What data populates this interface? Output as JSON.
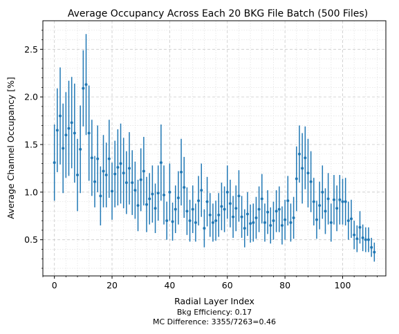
{
  "chart_data": {
    "type": "scatter",
    "title": "Average Occupancy Across Each 20 BKG File Batch (500 Files)",
    "xlabel": "Radial Layer Index",
    "ylabel": "Average Channel Occupancy [%]",
    "xlim": [
      -4,
      115
    ],
    "ylim": [
      0.12,
      2.8
    ],
    "xticks": [
      0,
      20,
      40,
      60,
      80,
      100
    ],
    "yticks": [
      0.5,
      1.0,
      1.5,
      2.0,
      2.5
    ],
    "xtick_labels": [
      "0",
      "20",
      "40",
      "60",
      "80",
      "100"
    ],
    "ytick_labels": [
      "0.5",
      "1.0",
      "1.5",
      "2.0",
      "2.5"
    ],
    "grid": true,
    "marker_color": "#1f77b4",
    "annotations": [
      "Bkg Efficiency: 0.17",
      "MC Difference: 3355/7263=0.46"
    ],
    "series": [
      {
        "x": [
          0,
          1,
          2,
          3,
          4,
          5,
          6,
          7,
          8,
          9,
          10,
          11,
          12,
          13,
          14,
          15,
          16,
          17,
          18,
          19,
          20,
          21,
          22,
          23,
          24,
          25,
          26,
          27,
          28,
          29,
          30,
          31,
          32,
          33,
          34,
          35,
          36,
          37,
          38,
          39,
          40,
          41,
          42,
          43,
          44,
          45,
          46,
          47,
          48,
          49,
          50,
          51,
          52,
          53,
          54,
          55,
          56,
          57,
          58,
          59,
          60,
          61,
          62,
          63,
          64,
          65,
          66,
          67,
          68,
          69,
          70,
          71,
          72,
          73,
          74,
          75,
          76,
          77,
          78,
          79,
          80,
          81,
          82,
          83,
          84,
          85,
          86,
          87,
          88,
          89,
          90,
          91,
          92,
          93,
          94,
          95,
          96,
          97,
          98,
          99,
          100,
          101,
          102,
          103,
          104,
          105,
          106,
          107,
          108,
          109,
          110,
          111
        ],
        "y": [
          1.31,
          1.65,
          1.8,
          1.46,
          1.6,
          1.67,
          1.73,
          1.62,
          1.18,
          1.45,
          2.09,
          2.13,
          1.62,
          1.36,
          1.11,
          1.35,
          0.96,
          1.22,
          1.18,
          1.35,
          1.01,
          1.19,
          1.26,
          1.3,
          1.2,
          1.1,
          1.25,
          1.1,
          1.02,
          0.86,
          1.13,
          1.22,
          0.87,
          0.93,
          0.98,
          0.83,
          0.99,
          1.31,
          0.97,
          0.7,
          1.0,
          0.69,
          0.82,
          0.94,
          1.21,
          1.05,
          0.8,
          0.7,
          0.82,
          0.68,
          0.91,
          1.02,
          0.62,
          0.9,
          0.76,
          0.68,
          0.7,
          0.76,
          0.85,
          0.82,
          1.0,
          0.88,
          0.74,
          0.83,
          0.96,
          0.74,
          0.62,
          0.77,
          0.67,
          0.68,
          0.73,
          0.82,
          0.93,
          0.68,
          0.79,
          0.65,
          0.7,
          0.8,
          0.82,
          0.65,
          0.71,
          0.91,
          0.68,
          0.73,
          1.14,
          1.4,
          1.25,
          1.36,
          1.2,
          1.11,
          0.9,
          0.71,
          0.86,
          1.0,
          0.8,
          0.93,
          0.68,
          0.92,
          0.83,
          0.92,
          0.9,
          0.9,
          0.7,
          0.72,
          0.55,
          0.51,
          0.63,
          0.52,
          0.5,
          0.5,
          0.42,
          0.37
        ],
        "err": [
          0.4,
          0.44,
          0.51,
          0.47,
          0.45,
          0.5,
          0.48,
          0.52,
          0.38,
          0.46,
          0.4,
          0.53,
          0.5,
          0.4,
          0.27,
          0.35,
          0.31,
          0.38,
          0.34,
          0.41,
          0.3,
          0.35,
          0.4,
          0.42,
          0.37,
          0.33,
          0.38,
          0.34,
          0.3,
          0.27,
          0.33,
          0.36,
          0.29,
          0.27,
          0.3,
          0.26,
          0.29,
          0.4,
          0.31,
          0.2,
          0.3,
          0.2,
          0.25,
          0.28,
          0.35,
          0.32,
          0.25,
          0.22,
          0.25,
          0.2,
          0.26,
          0.28,
          0.2,
          0.26,
          0.23,
          0.2,
          0.21,
          0.23,
          0.25,
          0.24,
          0.28,
          0.25,
          0.22,
          0.24,
          0.27,
          0.22,
          0.2,
          0.23,
          0.2,
          0.2,
          0.22,
          0.24,
          0.26,
          0.2,
          0.23,
          0.19,
          0.2,
          0.22,
          0.24,
          0.2,
          0.21,
          0.26,
          0.2,
          0.22,
          0.34,
          0.3,
          0.37,
          0.33,
          0.36,
          0.32,
          0.25,
          0.2,
          0.25,
          0.28,
          0.24,
          0.27,
          0.2,
          0.26,
          0.24,
          0.26,
          0.24,
          0.25,
          0.2,
          0.2,
          0.15,
          0.14,
          0.17,
          0.14,
          0.13,
          0.13,
          0.1,
          0.1
        ]
      }
    ]
  }
}
